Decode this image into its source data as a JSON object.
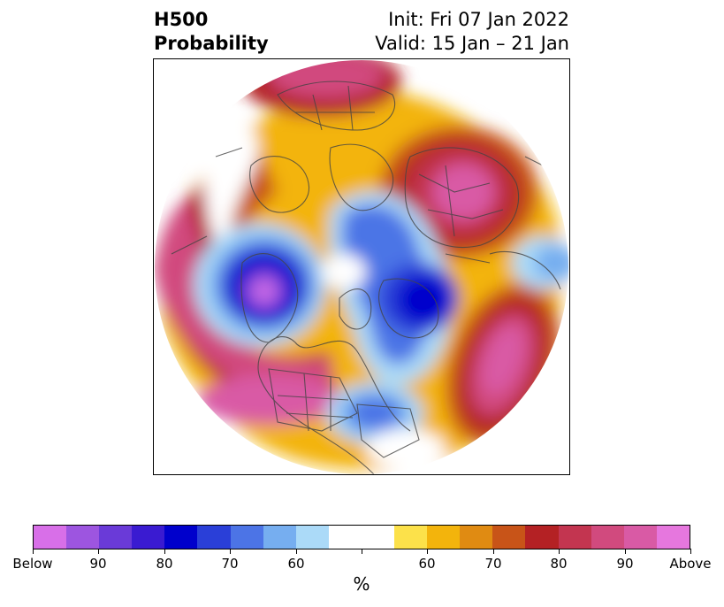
{
  "header": {
    "left_line1": "H500",
    "left_line2": "Probability",
    "right_line1": "Init: Fri 07 Jan 2022",
    "right_line2": "Valid: 15 Jan – 21 Jan"
  },
  "colorbar": {
    "colors": [
      "#d86fe8",
      "#9d55e0",
      "#6a3ad8",
      "#3a1bd1",
      "#0000cc",
      "#2a3fd8",
      "#4c74e6",
      "#76aef0",
      "#abdaf8",
      "#ffffff",
      "#ffffff",
      "#fce14a",
      "#f3b40c",
      "#e08b12",
      "#c85418",
      "#b42124",
      "#c33550",
      "#d14a7e",
      "#d95aa5",
      "#e677de"
    ],
    "ticks": [
      {
        "label": "Below"
      },
      {
        "label": "90"
      },
      {
        "label": "80"
      },
      {
        "label": "70"
      },
      {
        "label": "60"
      },
      {
        "label": ""
      },
      {
        "label": "60"
      },
      {
        "label": "70"
      },
      {
        "label": "80"
      },
      {
        "label": "90"
      },
      {
        "label": "Above"
      }
    ],
    "unit": "%"
  }
}
